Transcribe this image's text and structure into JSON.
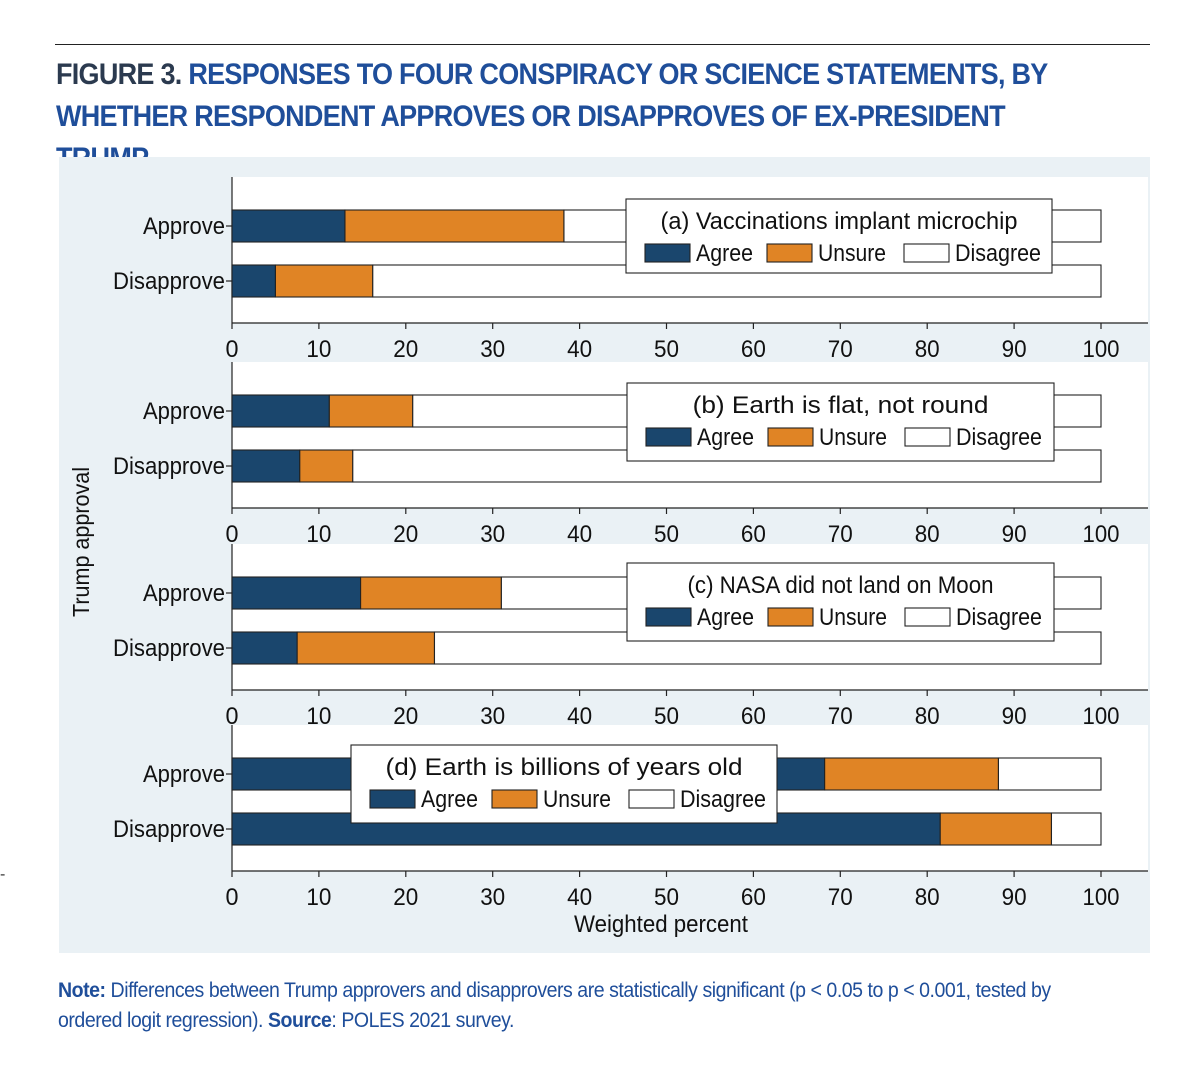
{
  "figure": {
    "label": "FIGURE 3.",
    "title": "RESPONSES TO FOUR CONSPIRACY OR SCIENCE STATEMENTS, BY WHETHER RESPONDENT APPROVES OR DISAPPROVES OF EX-PRESIDENT TRUMP"
  },
  "chart_data": {
    "type": "bar",
    "orientation": "horizontal",
    "stacked": true,
    "ylabel": "Trump approval",
    "xlabel": "Weighted percent",
    "xlim": [
      0,
      100
    ],
    "xticks": [
      0,
      10,
      20,
      30,
      40,
      50,
      60,
      70,
      80,
      90,
      100
    ],
    "categories": [
      "Approve",
      "Disapprove"
    ],
    "legend_items": [
      "Agree",
      "Unsure",
      "Disagree"
    ],
    "colors": {
      "Agree": "#1a466d",
      "Unsure": "#e08425",
      "Disagree": "#ffffff",
      "plot_bg": "#eaf1f5",
      "region_bg": "#ffffff"
    },
    "panels": [
      {
        "title": "(a)  Vaccinations implant microchip",
        "legend_position": "top-right",
        "series": [
          {
            "name": "Agree",
            "values": [
              13,
              5
            ]
          },
          {
            "name": "Unsure",
            "values": [
              25.2,
              11.2
            ]
          },
          {
            "name": "Disagree",
            "values": [
              61.8,
              83.8
            ]
          }
        ]
      },
      {
        "title": "(b)  Earth is flat, not round",
        "legend_position": "top-right",
        "series": [
          {
            "name": "Agree",
            "values": [
              11.2,
              7.8
            ]
          },
          {
            "name": "Unsure",
            "values": [
              9.6,
              6.1
            ]
          },
          {
            "name": "Disagree",
            "values": [
              79.2,
              86.1
            ]
          }
        ]
      },
      {
        "title": "(c)  NASA did not land on Moon",
        "legend_position": "top-right",
        "series": [
          {
            "name": "Agree",
            "values": [
              14.8,
              7.5
            ]
          },
          {
            "name": "Unsure",
            "values": [
              16.2,
              15.8
            ]
          },
          {
            "name": "Disagree",
            "values": [
              69,
              76.7
            ]
          }
        ]
      },
      {
        "title": "(d)  Earth is billions of years old",
        "legend_position": "top-center",
        "series": [
          {
            "name": "Agree",
            "values": [
              68.2,
              81.5
            ]
          },
          {
            "name": "Unsure",
            "values": [
              20,
              12.8
            ]
          },
          {
            "name": "Disagree",
            "values": [
              11.8,
              5.7
            ]
          }
        ]
      }
    ]
  },
  "note": {
    "note_label": "Note:",
    "note_text": " Differences between Trump approvers and disapprovers are statistically significant (p < 0.05 to p < 0.001, tested by ordered logit regression). ",
    "source_label": "Source",
    "source_text": ": POLES 2021 survey."
  },
  "margin_mark": "-"
}
